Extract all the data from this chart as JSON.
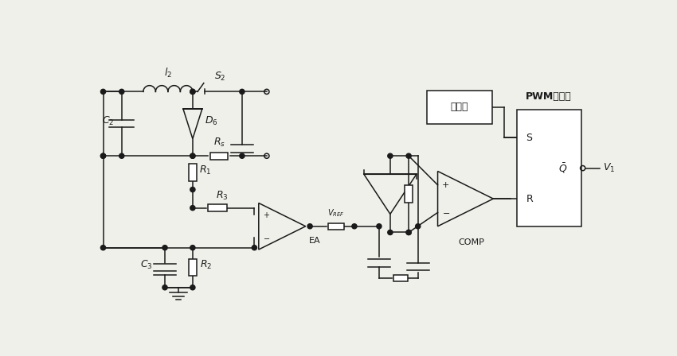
{
  "fig_width": 8.5,
  "fig_height": 4.48,
  "dpi": 100,
  "bg_color": "#f0f0eb",
  "line_color": "#1a1a1a",
  "line_width": 1.1,
  "labels": {
    "L2": "$l_2$",
    "C2": "$C_2$",
    "D6": "$D_6$",
    "S2": "$S_2$",
    "Rs": "$R_s$",
    "R1": "$R_1$",
    "R3": "$R_3$",
    "R2": "$R_2$",
    "C3": "$C_3$",
    "EA": "EA",
    "VREF": "$V_{REF}$",
    "COMP": "COMP",
    "PWM": "PWM控制器",
    "osc": "振荡器",
    "S": "S",
    "R": "R",
    "Qbar": "$\\bar{Q}$",
    "V1": "$V_1$"
  }
}
